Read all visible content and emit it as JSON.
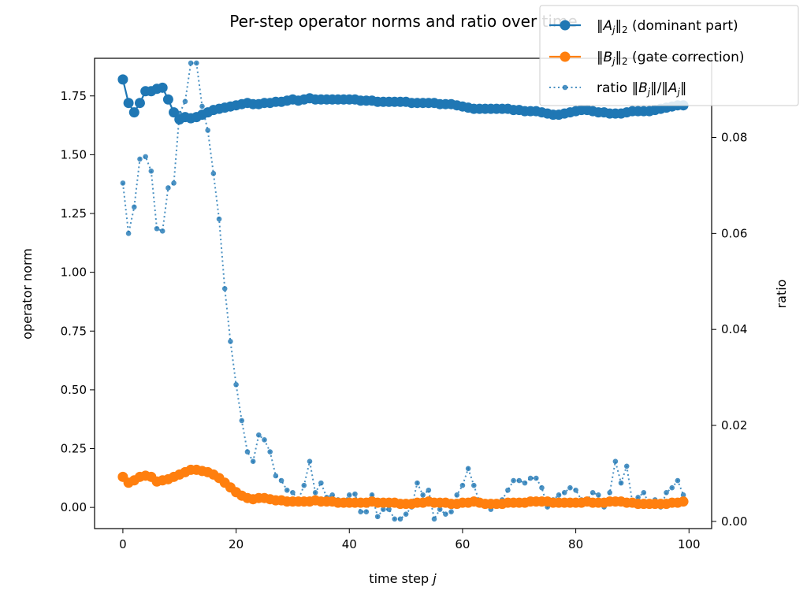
{
  "chart_data": {
    "type": "line",
    "title": "Per-step operator norms and ratio over time",
    "xlabel": "time step j",
    "ylabel": "operator norm",
    "y2label": "ratio",
    "xlim": [
      -5,
      104
    ],
    "ylim": [
      -0.09,
      1.91
    ],
    "y2lim": [
      -0.0015,
      0.0965
    ],
    "xticks": [
      "0",
      "20",
      "40",
      "60",
      "80",
      "100"
    ],
    "xtick_values": [
      0,
      20,
      40,
      60,
      80,
      100
    ],
    "yticks": [
      "0.00",
      "0.25",
      "0.50",
      "0.75",
      "1.00",
      "1.25",
      "1.50",
      "1.75"
    ],
    "ytick_values": [
      0,
      0.25,
      0.5,
      0.75,
      1.0,
      1.25,
      1.5,
      1.75
    ],
    "y2ticks": [
      "0.00",
      "0.02",
      "0.04",
      "0.06",
      "0.08"
    ],
    "y2tick_values": [
      0,
      0.02,
      0.04,
      0.06,
      0.08
    ],
    "legend_position": "top-right",
    "colors": {
      "A": "#1f77b4",
      "B": "#ff7f0e",
      "ratio": "#1f77b4"
    },
    "series": [
      {
        "key": "A",
        "name": "‖A_j‖₂ (dominant part)",
        "legend_parts": [
          "‖",
          "A",
          "j",
          "‖",
          "2",
          " (dominant part)"
        ],
        "axis": "left",
        "style": "solid-marker",
        "values": [
          1.82,
          1.72,
          1.68,
          1.72,
          1.77,
          1.77,
          1.78,
          1.785,
          1.735,
          1.68,
          1.65,
          1.66,
          1.655,
          1.66,
          1.67,
          1.68,
          1.69,
          1.695,
          1.7,
          1.705,
          1.71,
          1.715,
          1.72,
          1.715,
          1.715,
          1.72,
          1.72,
          1.725,
          1.725,
          1.73,
          1.735,
          1.73,
          1.735,
          1.74,
          1.735,
          1.735,
          1.735,
          1.735,
          1.735,
          1.735,
          1.735,
          1.735,
          1.73,
          1.73,
          1.73,
          1.725,
          1.725,
          1.725,
          1.725,
          1.725,
          1.725,
          1.72,
          1.72,
          1.72,
          1.72,
          1.72,
          1.715,
          1.715,
          1.715,
          1.71,
          1.705,
          1.7,
          1.695,
          1.695,
          1.695,
          1.695,
          1.695,
          1.695,
          1.695,
          1.69,
          1.69,
          1.685,
          1.685,
          1.685,
          1.68,
          1.675,
          1.67,
          1.67,
          1.675,
          1.68,
          1.685,
          1.69,
          1.69,
          1.685,
          1.68,
          1.68,
          1.675,
          1.675,
          1.675,
          1.68,
          1.685,
          1.685,
          1.685,
          1.685,
          1.69,
          1.695,
          1.7,
          1.705,
          1.71,
          1.71
        ]
      },
      {
        "key": "B",
        "name": "‖B_j‖₂ (gate correction)",
        "legend_parts": [
          "‖",
          "B",
          "j",
          "‖",
          "2",
          " (gate correction)"
        ],
        "axis": "left",
        "style": "solid-marker",
        "values": [
          0.13,
          0.105,
          0.115,
          0.13,
          0.135,
          0.13,
          0.11,
          0.115,
          0.12,
          0.13,
          0.14,
          0.15,
          0.16,
          0.16,
          0.155,
          0.15,
          0.14,
          0.125,
          0.105,
          0.085,
          0.065,
          0.05,
          0.04,
          0.035,
          0.04,
          0.04,
          0.035,
          0.03,
          0.03,
          0.025,
          0.025,
          0.025,
          0.025,
          0.025,
          0.03,
          0.025,
          0.025,
          0.025,
          0.02,
          0.02,
          0.02,
          0.02,
          0.02,
          0.02,
          0.025,
          0.02,
          0.02,
          0.02,
          0.02,
          0.015,
          0.015,
          0.015,
          0.02,
          0.02,
          0.025,
          0.02,
          0.02,
          0.02,
          0.015,
          0.015,
          0.02,
          0.02,
          0.025,
          0.02,
          0.015,
          0.015,
          0.015,
          0.015,
          0.02,
          0.02,
          0.02,
          0.02,
          0.025,
          0.025,
          0.025,
          0.025,
          0.02,
          0.02,
          0.02,
          0.02,
          0.02,
          0.02,
          0.025,
          0.02,
          0.02,
          0.02,
          0.025,
          0.025,
          0.025,
          0.02,
          0.02,
          0.015,
          0.015,
          0.015,
          0.015,
          0.015,
          0.015,
          0.02,
          0.02,
          0.025
        ]
      },
      {
        "key": "ratio",
        "name": "ratio ‖B_j‖/‖A_j‖",
        "legend_parts": [
          "ratio ‖",
          "B",
          "j",
          "‖/‖",
          "A",
          "j",
          "‖"
        ],
        "axis": "right",
        "style": "dotted-small-marker",
        "values": [
          0.0705,
          0.06,
          0.0655,
          0.0755,
          0.076,
          0.073,
          0.061,
          0.0605,
          0.0695,
          0.0705,
          0.085,
          0.0875,
          0.0955,
          0.0955,
          0.0865,
          0.0815,
          0.0725,
          0.063,
          0.0485,
          0.0375,
          0.0285,
          0.021,
          0.0145,
          0.0125,
          0.018,
          0.017,
          0.0145,
          0.0095,
          0.0085,
          0.0065,
          0.006,
          0.0045,
          0.0075,
          0.0125,
          0.006,
          0.008,
          0.005,
          0.0055,
          0.0045,
          0.004,
          0.0055,
          0.0057,
          0.002,
          0.002,
          0.0055,
          0.001,
          0.0025,
          0.0025,
          0.0005,
          0.0005,
          0.0015,
          0.003,
          0.008,
          0.0055,
          0.0065,
          0.0005,
          0.0025,
          0.0015,
          0.002,
          0.0055,
          0.0075,
          0.011,
          0.0075,
          0.004,
          0.004,
          0.0025,
          0.0035,
          0.0045,
          0.0065,
          0.0085,
          0.0085,
          0.008,
          0.009,
          0.009,
          0.007,
          0.003,
          0.0045,
          0.0055,
          0.006,
          0.007,
          0.0065,
          0.0045,
          0.0045,
          0.006,
          0.0055,
          0.003,
          0.006,
          0.0125,
          0.008,
          0.0115,
          0.004,
          0.005,
          0.006,
          0.0035,
          0.0045,
          0.003,
          0.006,
          0.007,
          0.0085,
          0.0055
        ]
      }
    ]
  }
}
